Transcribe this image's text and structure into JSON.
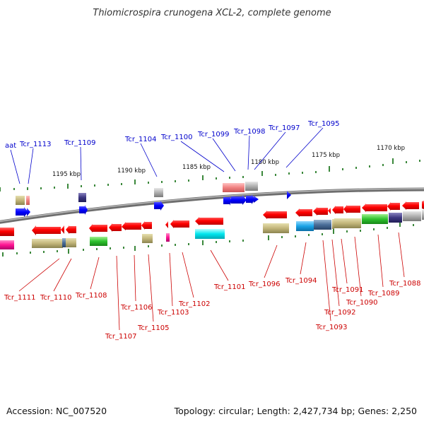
{
  "title": "Thiomicrospira crunogena XCL-2, complete genome",
  "footer": {
    "accession": "Accession: NC_007520",
    "summary": "Topology: circular; Length: 2,427,734 bp; Genes: 2,250"
  },
  "scale_ticks": [
    "1195 kbp",
    "1190 kbp",
    "1185 kbp",
    "1180 kbp",
    "1175 kbp",
    "1170 kbp"
  ],
  "top_labels": [
    "aat",
    "Tcr_1113",
    "Tcr_1109",
    "Tcr_1104",
    "Tcr_1100",
    "Tcr_1099",
    "Tcr_1098",
    "Tcr_1097",
    "Tcr_1095"
  ],
  "bottom_labels": [
    "Tcr_1111",
    "Tcr_1110",
    "Tcr_1108",
    "Tcr_1107",
    "Tcr_1106",
    "Tcr_1105",
    "Tcr_1103",
    "Tcr_1102",
    "Tcr_1101",
    "Tcr_1096",
    "Tcr_1094",
    "Tcr_1093",
    "Tcr_1092",
    "Tcr_1091",
    "Tcr_1090",
    "Tcr_1089",
    "Tcr_1088"
  ],
  "colors": {
    "backbone": "#7f7f7f",
    "gene_red": "#ff0000",
    "gene_blue": "#0000ff",
    "label_top": "#0000cc",
    "label_bottom": "#cc0000",
    "tick": "#0a6a0a"
  }
}
